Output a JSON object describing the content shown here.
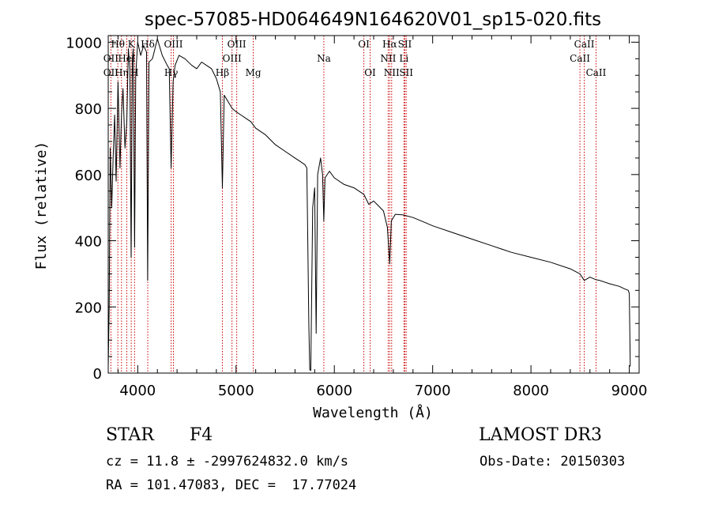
{
  "chart_data": {
    "type": "line",
    "title": "spec-57085-HD064649N164620V01_sp15-020.fits",
    "xlabel": "Wavelength (Å)",
    "ylabel": "Flux (relative)",
    "xlim": [
      3700,
      9100
    ],
    "ylim": [
      0,
      1020
    ],
    "xticks": [
      4000,
      5000,
      6000,
      7000,
      8000,
      9000
    ],
    "yticks": [
      0,
      200,
      400,
      600,
      800,
      1000
    ],
    "series": [
      {
        "name": "spectrum",
        "x": [
          3700,
          3710,
          3720,
          3735,
          3750,
          3765,
          3780,
          3800,
          3820,
          3835,
          3850,
          3870,
          3889,
          3905,
          3920,
          3933,
          3945,
          3955,
          3968,
          3980,
          4000,
          4030,
          4060,
          4090,
          4101,
          4115,
          4150,
          4200,
          4250,
          4300,
          4320,
          4340,
          4360,
          4380,
          4420,
          4480,
          4550,
          4600,
          4650,
          4700,
          4750,
          4800,
          4840,
          4861,
          4880,
          4920,
          4960,
          5000,
          5050,
          5100,
          5150,
          5200,
          5300,
          5400,
          5500,
          5600,
          5650,
          5700,
          5720,
          5730,
          5740,
          5750,
          5760,
          5780,
          5800,
          5815,
          5830,
          5860,
          5880,
          5893,
          5905,
          5950,
          6000,
          6100,
          6200,
          6300,
          6350,
          6400,
          6500,
          6540,
          6563,
          6580,
          6620,
          6700,
          6800,
          6900,
          7000,
          7200,
          7400,
          7600,
          7800,
          8000,
          8200,
          8400,
          8498,
          8542,
          8600,
          8662,
          8700,
          8800,
          8900,
          8950,
          8990,
          9000,
          9010
        ],
        "y": [
          20,
          200,
          680,
          500,
          650,
          780,
          580,
          880,
          620,
          780,
          860,
          680,
          760,
          980,
          920,
          350,
          950,
          980,
          380,
          900,
          1000,
          960,
          990,
          970,
          280,
          940,
          950,
          1010,
          960,
          930,
          920,
          620,
          880,
          930,
          960,
          950,
          930,
          920,
          940,
          930,
          920,
          890,
          850,
          560,
          840,
          820,
          800,
          790,
          780,
          770,
          760,
          740,
          720,
          690,
          670,
          650,
          640,
          630,
          620,
          400,
          150,
          10,
          8,
          500,
          560,
          120,
          600,
          650,
          600,
          460,
          590,
          610,
          590,
          570,
          560,
          540,
          510,
          520,
          490,
          440,
          330,
          460,
          480,
          478,
          470,
          458,
          445,
          425,
          405,
          385,
          365,
          350,
          335,
          315,
          300,
          280,
          290,
          282,
          280,
          270,
          262,
          255,
          250,
          240,
          20
        ]
      }
    ],
    "line_markers": [
      {
        "label": "Hθ",
        "wavelength": 3798,
        "row": 0
      },
      {
        "label": "OII",
        "wavelength": 3727,
        "row": 1
      },
      {
        "label": "OII",
        "wavelength": 3727,
        "row": 2
      },
      {
        "label": "Hη",
        "wavelength": 3835,
        "row": 2
      },
      {
        "label": "HeI",
        "wavelength": 3889,
        "row": 1
      },
      {
        "label": "K",
        "wavelength": 3934,
        "row": 0
      },
      {
        "label": "H",
        "wavelength": 3968,
        "row": 2
      },
      {
        "label": "Hδ",
        "wavelength": 4102,
        "row": 0
      },
      {
        "label": "Hγ",
        "wavelength": 4340,
        "row": 2
      },
      {
        "label": "OIII",
        "wavelength": 4363,
        "row": 0
      },
      {
        "label": "Hβ",
        "wavelength": 4861,
        "row": 2
      },
      {
        "label": "OIII",
        "wavelength": 4959,
        "row": 1
      },
      {
        "label": "OIII",
        "wavelength": 5007,
        "row": 0
      },
      {
        "label": "Mg",
        "wavelength": 5175,
        "row": 2
      },
      {
        "label": "Na",
        "wavelength": 5893,
        "row": 1
      },
      {
        "label": "OI",
        "wavelength": 6300,
        "row": 0
      },
      {
        "label": "OI",
        "wavelength": 6364,
        "row": 2
      },
      {
        "label": "Hα",
        "wavelength": 6563,
        "row": 0
      },
      {
        "label": "NII",
        "wavelength": 6548,
        "row": 1
      },
      {
        "label": "NII",
        "wavelength": 6583,
        "row": 2
      },
      {
        "label": "SII",
        "wavelength": 6717,
        "row": 0
      },
      {
        "label": "Li",
        "wavelength": 6708,
        "row": 1
      },
      {
        "label": "SII",
        "wavelength": 6731,
        "row": 2
      },
      {
        "label": "CaII",
        "wavelength": 8542,
        "row": 0
      },
      {
        "label": "CaII",
        "wavelength": 8498,
        "row": 1
      },
      {
        "label": "CaII",
        "wavelength": 8662,
        "row": 2
      }
    ],
    "colors": {
      "line": "#000000",
      "marker": "#cc0000",
      "axes": "#000000"
    }
  },
  "info": {
    "object_class": "STAR",
    "subclass": "F4",
    "survey": "LAMOST DR3",
    "redshift_text": "cz = 11.8 ± -2997624832.0 km/s",
    "obs_date_text": "Obs-Date: 20150303",
    "coords_text": "RA = 101.47083, DEC =  17.77024"
  }
}
